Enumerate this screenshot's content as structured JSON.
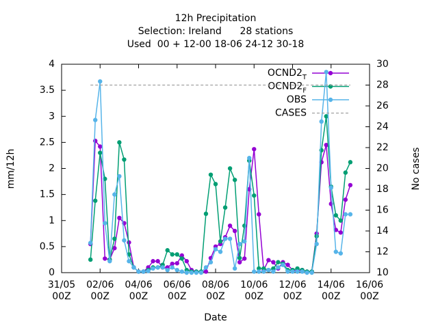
{
  "chart_data": {
    "type": "line",
    "title": [
      "12h Precipitation",
      "Selection: Ireland      28 stations",
      "Used  00 + 12-00 18-06 24-12 30-18"
    ],
    "xlabel": "Date",
    "ylabel": "mm/12h",
    "y2label": "No cases",
    "x": [
      "01/06 12Z",
      "01/06 18Z",
      "02/06 00Z",
      "02/06 06Z",
      "02/06 12Z",
      "02/06 18Z",
      "03/06 00Z",
      "03/06 06Z",
      "03/06 12Z",
      "03/06 18Z",
      "04/06 00Z",
      "04/06 06Z",
      "04/06 12Z",
      "04/06 18Z",
      "05/06 00Z",
      "05/06 06Z",
      "05/06 12Z",
      "05/06 18Z",
      "06/06 00Z",
      "06/06 06Z",
      "06/06 12Z",
      "06/06 18Z",
      "07/06 00Z",
      "07/06 06Z",
      "07/06 12Z",
      "07/06 18Z",
      "08/06 00Z",
      "08/06 06Z",
      "08/06 12Z",
      "08/06 18Z",
      "09/06 00Z",
      "09/06 06Z",
      "09/06 12Z",
      "09/06 18Z",
      "10/06 00Z",
      "10/06 06Z",
      "10/06 12Z",
      "10/06 18Z",
      "11/06 00Z",
      "11/06 06Z",
      "11/06 12Z",
      "11/06 18Z",
      "12/06 00Z",
      "12/06 06Z",
      "12/06 12Z",
      "12/06 18Z",
      "13/06 00Z",
      "13/06 06Z",
      "13/06 12Z",
      "13/06 18Z",
      "14/06 00Z",
      "14/06 06Z",
      "14/06 12Z",
      "14/06 18Z",
      "15/06 00Z"
    ],
    "series": [
      {
        "name": "OCND2_T",
        "color": "#9400d3",
        "values": [
          0.55,
          2.53,
          2.42,
          0.27,
          0.25,
          0.47,
          1.05,
          0.95,
          0.58,
          0.1,
          0.02,
          0.02,
          0.1,
          0.22,
          0.22,
          0.1,
          0.1,
          0.17,
          0.18,
          0.33,
          0.22,
          0.05,
          0.02,
          0.02,
          0.02,
          0.28,
          0.5,
          0.55,
          0.68,
          0.9,
          0.8,
          0.2,
          0.27,
          1.6,
          2.37,
          1.12,
          0.05,
          0.24,
          0.2,
          0.08,
          0.2,
          0.15,
          0.05,
          0.03,
          0.05,
          0.02,
          0.02,
          0.75,
          2.12,
          2.45,
          1.32,
          0.82,
          0.77,
          1.4,
          1.68
        ]
      },
      {
        "name": "OCND2_F",
        "color": "#009e73",
        "values": [
          0.25,
          1.38,
          2.3,
          1.8,
          0.25,
          0.65,
          2.5,
          2.17,
          0.35,
          0.1,
          0.02,
          0.02,
          0.05,
          0.1,
          0.1,
          0.15,
          0.43,
          0.35,
          0.35,
          0.27,
          0.05,
          0.02,
          0.02,
          0.02,
          1.13,
          1.88,
          1.7,
          0.6,
          1.25,
          2.0,
          1.78,
          0.28,
          0.9,
          2.15,
          1.48,
          0.08,
          0.08,
          0.05,
          0.08,
          0.2,
          0.17,
          0.05,
          0.05,
          0.08,
          0.05,
          0.02,
          0.02,
          0.7,
          2.35,
          3.0,
          1.65,
          1.1,
          1.0,
          1.92,
          2.12
        ]
      },
      {
        "name": "OBS",
        "color": "#56b4e9",
        "values": [
          0.57,
          2.93,
          3.67,
          0.95,
          0.22,
          1.5,
          1.85,
          0.62,
          0.22,
          0.1,
          0.02,
          0.02,
          0.03,
          0.08,
          0.1,
          0.1,
          0.05,
          0.1,
          0.05,
          0.02,
          0,
          0,
          0,
          0,
          0.1,
          0.2,
          0.45,
          0.4,
          0.65,
          0.65,
          0.08,
          0.55,
          0.6,
          2.2,
          0.02,
          0.02,
          0.02,
          0.05,
          0.02,
          0.1,
          0.15,
          0.02,
          0.02,
          0.02,
          0.02,
          0,
          0,
          0.55,
          2.9,
          3.85,
          1.63,
          0.4,
          0.37,
          1.12,
          1.12
        ]
      },
      {
        "name": "CASES",
        "color": "#a0a0a0",
        "axis": "y2",
        "dashed": true,
        "values": [
          28,
          28,
          28,
          28,
          28,
          28,
          28,
          28,
          28,
          28,
          28,
          28,
          28,
          28,
          28,
          28,
          28,
          28,
          28,
          28,
          28,
          28,
          28,
          28,
          28,
          28,
          28,
          28,
          28,
          28,
          28,
          28,
          28,
          28,
          28,
          28,
          28,
          28,
          28,
          28,
          28,
          28,
          28,
          28,
          28,
          28,
          28,
          28,
          28,
          28,
          28,
          28,
          28,
          28,
          28
        ]
      }
    ],
    "xticks": [
      "31/05 00Z",
      "02/06 00Z",
      "04/06 00Z",
      "06/06 00Z",
      "08/06 00Z",
      "10/06 00Z",
      "12/06 00Z",
      "14/06 00Z",
      "16/06 00Z"
    ],
    "ylim": [
      0,
      4
    ],
    "yticks": [
      0,
      0.5,
      1,
      1.5,
      2,
      2.5,
      3,
      3.5,
      4
    ],
    "y2lim": [
      10,
      30
    ],
    "y2ticks": [
      10,
      12,
      14,
      16,
      18,
      20,
      22,
      24,
      26,
      28,
      30
    ],
    "legend": "top-right",
    "grid": false
  }
}
